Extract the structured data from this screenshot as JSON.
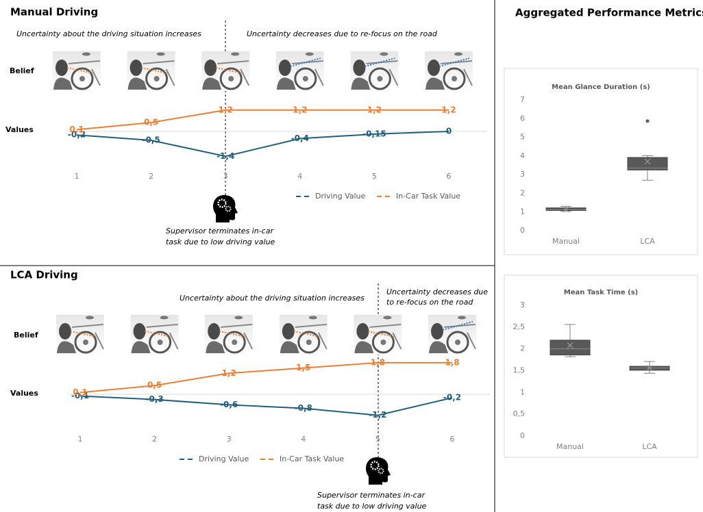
{
  "header": {
    "title": "Aggregated Performance Metrics"
  },
  "chart_data": [
    {
      "type": "line",
      "title": "Manual Driving",
      "categories": [
        "1",
        "2",
        "3",
        "4",
        "5",
        "6"
      ],
      "row_labels": [
        "Belief",
        "Values"
      ],
      "annotations": [
        [
          "Uncertainty about the driving situation increases"
        ],
        [
          "Uncertainty decreases due to re-focus on the road"
        ],
        [
          "Supervisor terminates in-car",
          "task due to low driving value"
        ]
      ],
      "series": [
        {
          "name": "Driving Value",
          "color": "#1f5f7d",
          "values": [
            -0.2,
            -0.5,
            -1.4,
            -0.4,
            -0.15,
            0
          ],
          "value_labels": [
            "-0,2",
            "-0,5",
            "-1,4",
            "-0,4",
            "-0,15",
            "0"
          ]
        },
        {
          "name": "In-Car Task Value",
          "color": "#ed7d31",
          "values": [
            0.1,
            0.5,
            1.2,
            1.2,
            1.2,
            1.2
          ],
          "value_labels": [
            "0,1",
            "0,5",
            "1,2",
            "1,2",
            "1,2",
            "1,2"
          ]
        }
      ]
    },
    {
      "type": "line",
      "title": "LCA Driving",
      "categories": [
        "1",
        "2",
        "3",
        "4",
        "5",
        "6"
      ],
      "row_labels": [
        "Belief",
        "Values"
      ],
      "annotations": [
        [
          "Uncertainty about the driving situation increases"
        ],
        [
          "Uncertainty decreases due",
          "to re-focus on the road"
        ],
        [
          "Supervisor terminates in-car",
          "task due to low driving value"
        ]
      ],
      "series": [
        {
          "name": "Driving Value",
          "color": "#1f5f7d",
          "values": [
            -0.1,
            -0.3,
            -0.6,
            -0.8,
            -1.2,
            -0.2
          ],
          "value_labels": [
            "-0,1",
            "-0,3",
            "-0,6",
            "-0,8",
            "-1,2",
            "-0,2"
          ]
        },
        {
          "name": "In-Car Task Value",
          "color": "#ed7d31",
          "values": [
            0.1,
            0.5,
            1.2,
            1.5,
            1.8,
            1.8
          ],
          "value_labels": [
            "0,1",
            "0,5",
            "1,2",
            "1,5",
            "1,8",
            "1,8"
          ]
        }
      ]
    },
    {
      "type": "box",
      "title": "Mean Glance Duration (s)",
      "categories": [
        "Manual",
        "LCA"
      ],
      "color": "#595959",
      "grid": false,
      "ylim": [
        0,
        7
      ],
      "yticks": [
        0,
        1,
        2,
        3,
        4,
        5,
        6,
        7
      ],
      "boxes": [
        {
          "min": 1.05,
          "q1": 1.08,
          "median": 1.12,
          "q3": 1.22,
          "max": 1.3,
          "mean": 1.13,
          "outliers": []
        },
        {
          "min": 2.7,
          "q1": 3.25,
          "median": 3.35,
          "q3": 3.92,
          "max": 4.02,
          "mean": 3.7,
          "outliers": [
            5.87
          ]
        }
      ]
    },
    {
      "type": "box",
      "title": "Mean Task Time (s)",
      "categories": [
        "Manual",
        "LCA"
      ],
      "color": "#595959",
      "grid": false,
      "ylim": [
        0,
        3
      ],
      "yticks": [
        0,
        {
          "value": 0.5,
          "label": "0,5"
        },
        1,
        {
          "value": 1.5,
          "label": "1,5"
        },
        2,
        {
          "value": 2.5,
          "label": "2,5"
        },
        3
      ],
      "boxes": [
        {
          "min": 1.82,
          "q1": 1.86,
          "median": 2.0,
          "q3": 2.2,
          "max": 2.56,
          "mean": 2.08,
          "outliers": []
        },
        {
          "min": 1.44,
          "q1": 1.51,
          "median": 1.56,
          "q3": 1.6,
          "max": 1.71,
          "mean": 1.56,
          "outliers": []
        }
      ]
    }
  ]
}
